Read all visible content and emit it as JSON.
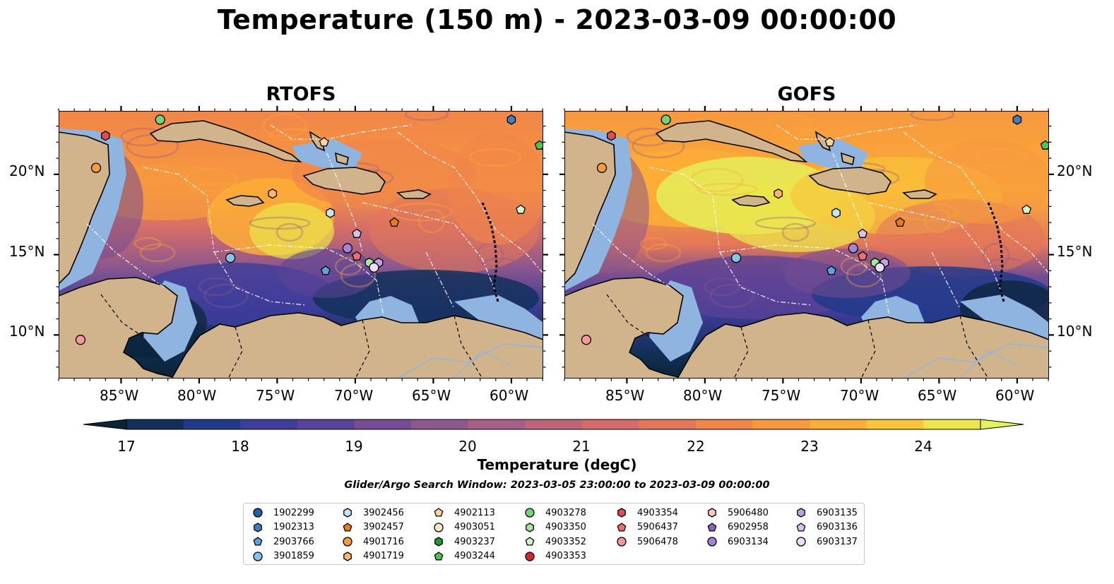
{
  "title": "Temperature (150 m) - 2023-03-09 00:00:00",
  "panels": [
    {
      "title": "RTOFS"
    },
    {
      "title": "GOFS"
    }
  ],
  "axes": {
    "lon_ticks": [
      "85°W",
      "80°W",
      "75°W",
      "70°W",
      "65°W",
      "60°W"
    ],
    "lat_ticks": [
      "20°N",
      "15°N",
      "10°N"
    ]
  },
  "colorbar": {
    "label": "Temperature (degC)",
    "ticks": [
      "17",
      "18",
      "19",
      "20",
      "21",
      "22",
      "23",
      "24"
    ],
    "range": [
      17,
      24.5
    ],
    "extend": "both",
    "colors": [
      "#0a2336",
      "#13305a",
      "#223a8a",
      "#3f3d9a",
      "#5a4296",
      "#744d92",
      "#8e588c",
      "#a65f86",
      "#bd6579",
      "#d26b6a",
      "#e3775a",
      "#f0864a",
      "#f7983f",
      "#fbad37",
      "#f9c53b",
      "#ece54b",
      "#e4f35a"
    ]
  },
  "search_window": "Glider/Argo Search Window: 2023-03-05 23:00:00 to 2023-03-09 00:00:00",
  "map_colors": {
    "land": "#d2b48c",
    "shelf": "#8fb4e0",
    "coastline": "#000000"
  },
  "legend": {
    "columns": [
      [
        {
          "id": "1902299",
          "marker": "circle",
          "color": "#1f5fa8"
        },
        {
          "id": "1902313",
          "marker": "hexagon",
          "color": "#3d7fc2"
        },
        {
          "id": "2903766",
          "marker": "pentagon",
          "color": "#5fa3d9"
        },
        {
          "id": "3901859",
          "marker": "circle",
          "color": "#88c2ee"
        }
      ],
      [
        {
          "id": "3902456",
          "marker": "hexagon",
          "color": "#c6e6f7"
        },
        {
          "id": "3902457",
          "marker": "pentagon",
          "color": "#f07a12"
        },
        {
          "id": "4901716",
          "marker": "circle",
          "color": "#f99b3a"
        },
        {
          "id": "4901719",
          "marker": "hexagon",
          "color": "#fcb76b"
        }
      ],
      [
        {
          "id": "4902113",
          "marker": "pentagon",
          "color": "#fcd29f"
        },
        {
          "id": "4903051",
          "marker": "circle",
          "color": "#fde6c9"
        },
        {
          "id": "4903237",
          "marker": "hexagon",
          "color": "#1e9a2e"
        },
        {
          "id": "4903244",
          "marker": "pentagon",
          "color": "#4ec452"
        }
      ],
      [
        {
          "id": "4903278",
          "marker": "circle",
          "color": "#74d27a"
        },
        {
          "id": "4903350",
          "marker": "hexagon",
          "color": "#a6e7a2"
        },
        {
          "id": "4903352",
          "marker": "pentagon",
          "color": "#d0f5cb"
        },
        {
          "id": "4903353",
          "marker": "circle",
          "color": "#d7262b"
        }
      ],
      [
        {
          "id": "4903354",
          "marker": "hexagon",
          "color": "#e04c4f"
        },
        {
          "id": "5906437",
          "marker": "pentagon",
          "color": "#ee6f72"
        },
        {
          "id": "5906478",
          "marker": "circle",
          "color": "#f49a9a"
        }
      ],
      [
        {
          "id": "5906480",
          "marker": "hexagon",
          "color": "#f8c6c4"
        },
        {
          "id": "6902958",
          "marker": "pentagon",
          "color": "#8a62c2"
        },
        {
          "id": "6903134",
          "marker": "circle",
          "color": "#a682d4"
        }
      ],
      [
        {
          "id": "6903135",
          "marker": "hexagon",
          "color": "#c0a2e4"
        },
        {
          "id": "6903136",
          "marker": "pentagon",
          "color": "#d6c2f0"
        },
        {
          "id": "6903137",
          "marker": "circle",
          "color": "#e9defa"
        }
      ]
    ]
  },
  "floats": [
    {
      "id": "4903278",
      "marker": "circle",
      "color": "#74d27a",
      "lon": -82.5,
      "lat": 23.4
    },
    {
      "id": "1902313",
      "marker": "hexagon",
      "color": "#3d7fc2",
      "lon": -60.0,
      "lat": 23.4
    },
    {
      "id": "4903354",
      "marker": "hexagon",
      "color": "#e04c4f",
      "lon": -86.0,
      "lat": 22.4
    },
    {
      "id": "4902113",
      "marker": "pentagon",
      "color": "#fcd29f",
      "lon": -72.0,
      "lat": 22.0
    },
    {
      "id": "4903244",
      "marker": "pentagon",
      "color": "#4ec452",
      "lon": -58.2,
      "lat": 21.8
    },
    {
      "id": "4901716",
      "marker": "circle",
      "color": "#f99b3a",
      "lon": -86.6,
      "lat": 20.4
    },
    {
      "id": "4901719",
      "marker": "hexagon",
      "color": "#fcb76b",
      "lon": -75.3,
      "lat": 18.8
    },
    {
      "id": "4903352",
      "marker": "pentagon",
      "color": "#d0f5cb",
      "lon": -59.4,
      "lat": 17.8
    },
    {
      "id": "3902456",
      "marker": "hexagon",
      "color": "#c6e6f7",
      "lon": -71.6,
      "lat": 17.6
    },
    {
      "id": "3902457",
      "marker": "pentagon",
      "color": "#f07a12",
      "lon": -67.5,
      "lat": 17.0
    },
    {
      "id": "6903136",
      "marker": "pentagon",
      "color": "#d6c2f0",
      "lon": -69.9,
      "lat": 16.3
    },
    {
      "id": "6903134",
      "marker": "circle",
      "color": "#a682d4",
      "lon": -70.5,
      "lat": 15.4
    },
    {
      "id": "5906437",
      "marker": "pentagon",
      "color": "#ee6f72",
      "lon": -69.9,
      "lat": 14.9
    },
    {
      "id": "3901859",
      "marker": "circle",
      "color": "#88c2ee",
      "lon": -78.0,
      "lat": 14.8
    },
    {
      "id": "4903350",
      "marker": "hexagon",
      "color": "#a6e7a2",
      "lon": -69.1,
      "lat": 14.5
    },
    {
      "id": "6903135",
      "marker": "hexagon",
      "color": "#c0a2e4",
      "lon": -68.5,
      "lat": 14.5
    },
    {
      "id": "6903137",
      "marker": "circle",
      "color": "#e9defa",
      "lon": -68.8,
      "lat": 14.2
    },
    {
      "id": "2903766",
      "marker": "pentagon",
      "color": "#5fa3d9",
      "lon": -71.9,
      "lat": 14.0
    },
    {
      "id": "5906478",
      "marker": "circle",
      "color": "#f49a9a",
      "lon": -87.6,
      "lat": 9.7
    }
  ]
}
